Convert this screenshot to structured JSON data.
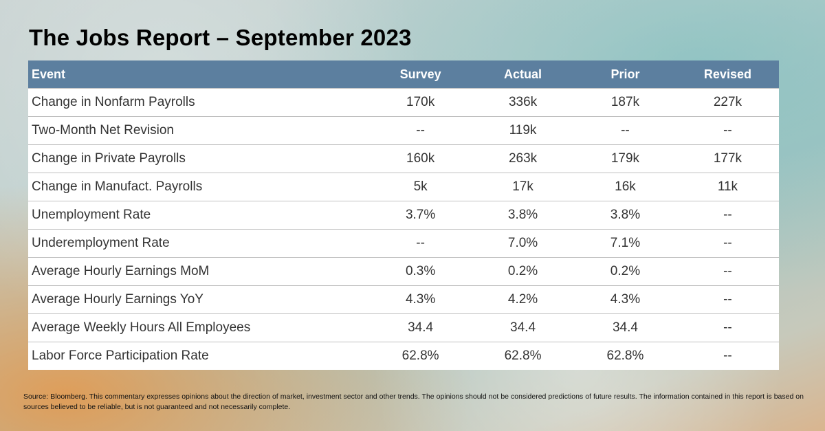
{
  "title": "The Jobs Report – September 2023",
  "chart_data": {
    "type": "table",
    "title": "The Jobs Report – September 2023",
    "columns": [
      "Event",
      "Survey",
      "Actual",
      "Prior",
      "Revised"
    ],
    "rows": [
      [
        "Change in Nonfarm Payrolls",
        "170k",
        "336k",
        "187k",
        "227k"
      ],
      [
        "Two-Month Net Revision",
        "--",
        "119k",
        "--",
        "--"
      ],
      [
        "Change in Private Payrolls",
        "160k",
        "263k",
        "179k",
        "177k"
      ],
      [
        "Change in Manufact. Payrolls",
        "5k",
        "17k",
        "16k",
        "11k"
      ],
      [
        "Unemployment Rate",
        "3.7%",
        "3.8%",
        "3.8%",
        "--"
      ],
      [
        "Underemployment Rate",
        "--",
        "7.0%",
        "7.1%",
        "--"
      ],
      [
        "Average Hourly Earnings MoM",
        "0.3%",
        "0.2%",
        "0.2%",
        "--"
      ],
      [
        "Average Hourly Earnings YoY",
        "4.3%",
        "4.2%",
        "4.3%",
        "--"
      ],
      [
        "Average Weekly Hours All Employees",
        "34.4",
        "34.4",
        "34.4",
        "--"
      ],
      [
        "Labor Force Participation Rate",
        "62.8%",
        "62.8%",
        "62.8%",
        "--"
      ]
    ]
  },
  "source": "Source: Bloomberg. This commentary expresses opinions about the direction of market, investment sector and other trends. The opinions should not be considered predictions of future results. The information contained in this report is based on sources believed to be reliable, but is not guaranteed and not necessarily complete.",
  "colors": {
    "header_bg": "#5c7f9f",
    "header_text": "#ffffff",
    "body_text": "#333333",
    "row_border": "#bfbfbf"
  }
}
